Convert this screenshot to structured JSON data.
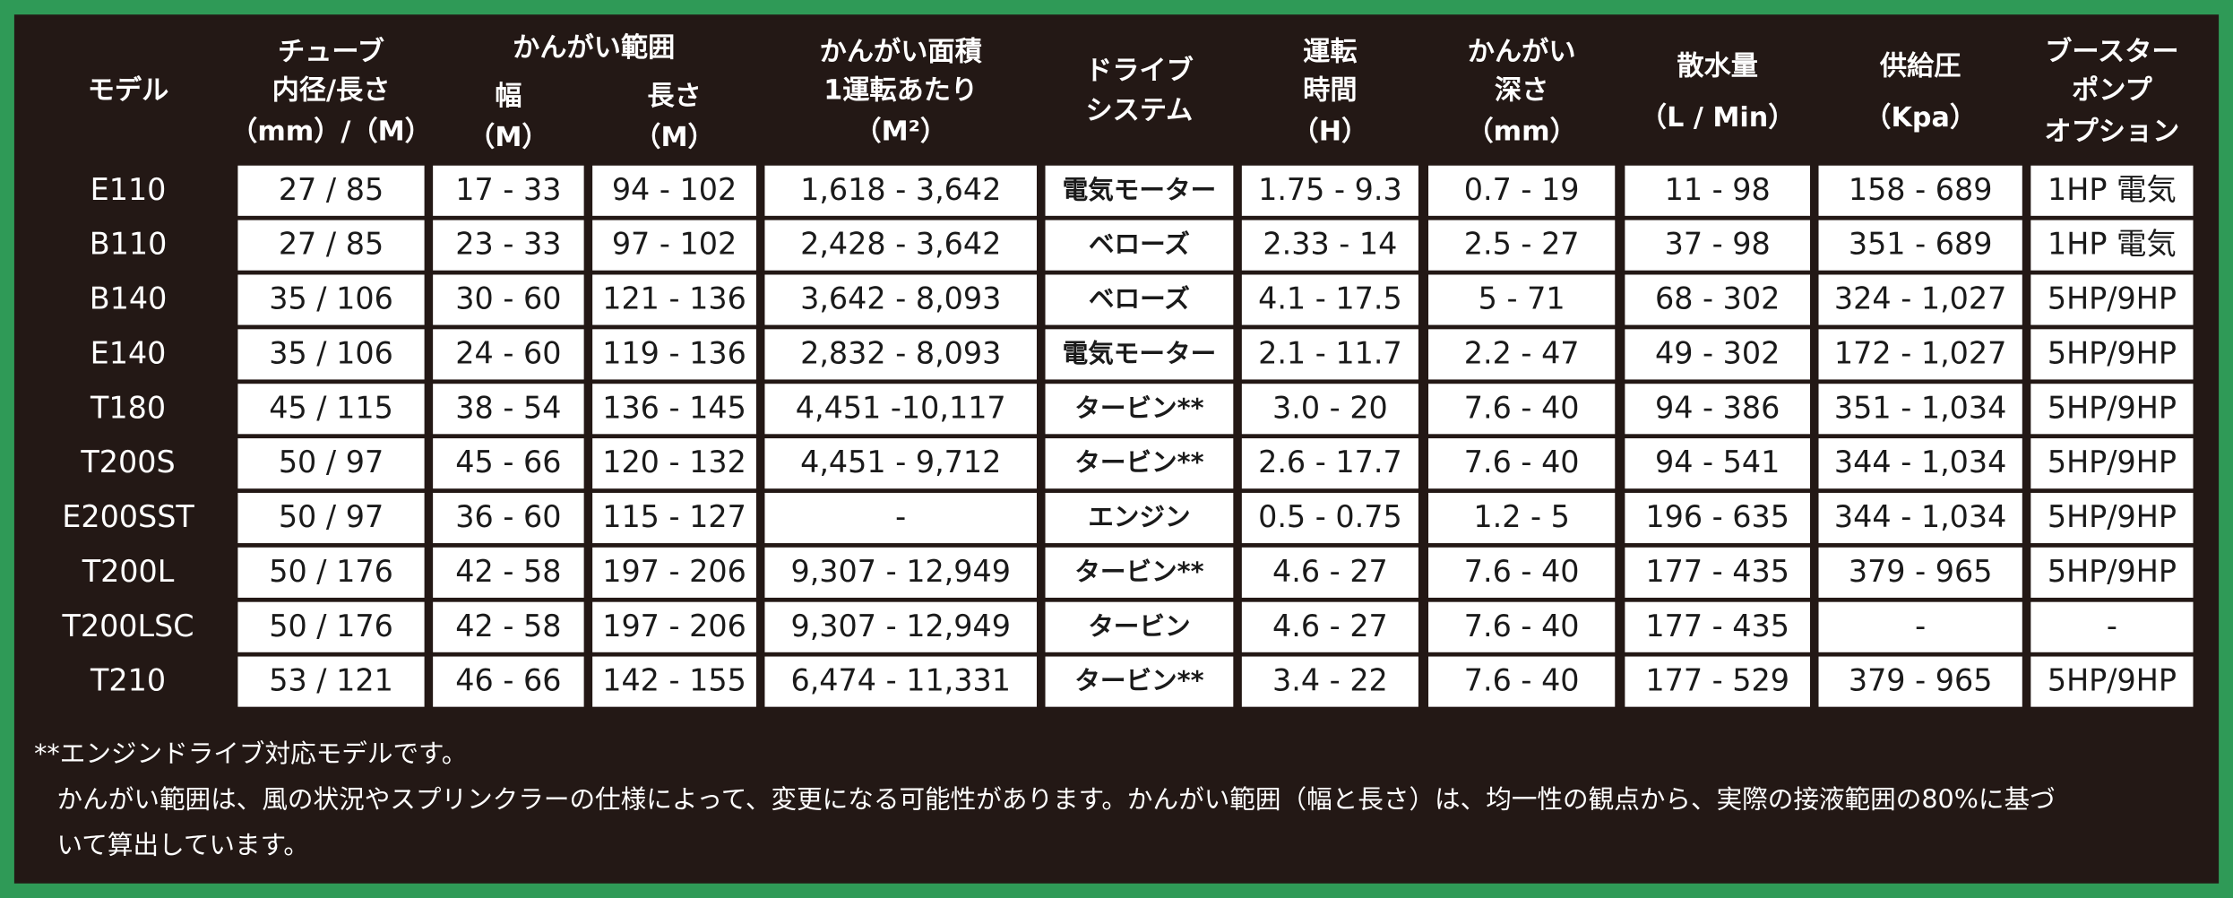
{
  "header": {
    "group": "かんがい範囲",
    "cells": [
      [
        "モデル"
      ],
      [
        "チューブ",
        "内径/長さ",
        "（mm）/（M）"
      ],
      [
        "幅",
        "（M）"
      ],
      [
        "長さ",
        "（M）"
      ],
      [
        "かんがい面積",
        "1運転あたり",
        "（M²）"
      ],
      [
        "ドライブ",
        "システム"
      ],
      [
        "運転",
        "時間",
        "（H）"
      ],
      [
        "かんがい",
        "深さ",
        "（mm）"
      ],
      [
        "散水量",
        "（L / Min）"
      ],
      [
        "供給圧",
        "（Kpa）"
      ],
      [
        "ブースター",
        "ポンプ",
        "オプション"
      ]
    ]
  },
  "table": {
    "rows": [
      [
        "E110",
        "27 / 85",
        "17 - 33",
        "94 - 102",
        "1,618 - 3,642",
        "電気モーター",
        "1.75 - 9.3",
        "0.7 - 19",
        "11 - 98",
        "158 - 689",
        "1HP 電気"
      ],
      [
        "B110",
        "27 / 85",
        "23 - 33",
        "97 - 102",
        "2,428 - 3,642",
        "ベローズ",
        "2.33 - 14",
        "2.5 - 27",
        "37 - 98",
        "351 - 689",
        "1HP 電気"
      ],
      [
        "B140",
        "35 / 106",
        "30 - 60",
        "121 - 136",
        "3,642 - 8,093",
        "ベローズ",
        "4.1 - 17.5",
        "5 - 71",
        "68 - 302",
        "324 - 1,027",
        "5HP/9HP"
      ],
      [
        "E140",
        "35 / 106",
        "24 - 60",
        "119 - 136",
        "2,832 - 8,093",
        "電気モーター",
        "2.1 - 11.7",
        "2.2 - 47",
        "49 - 302",
        "172 - 1,027",
        "5HP/9HP"
      ],
      [
        "T180",
        "45 / 115",
        "38 - 54",
        "136 - 145",
        "4,451 -10,117",
        "タービン**",
        "3.0 - 20",
        "7.6 - 40",
        "94 - 386",
        "351 - 1,034",
        "5HP/9HP"
      ],
      [
        "T200S",
        "50 / 97",
        "45 - 66",
        "120 - 132",
        "4,451 - 9,712",
        "タービン**",
        "2.6 - 17.7",
        "7.6 - 40",
        "94 - 541",
        "344 - 1,034",
        "5HP/9HP"
      ],
      [
        "E200SST",
        "50 / 97",
        "36 - 60",
        "115 - 127",
        "-",
        "エンジン",
        "0.5 - 0.75",
        "1.2 - 5",
        "196 - 635",
        "344 - 1,034",
        "5HP/9HP"
      ],
      [
        "T200L",
        "50 / 176",
        "42 - 58",
        "197 - 206",
        "9,307 - 12,949",
        "タービン**",
        "4.6 - 27",
        "7.6 - 40",
        "177 - 435",
        "379 - 965",
        "5HP/9HP"
      ],
      [
        "T200LSC",
        "50 / 176",
        "42 - 58",
        "197 - 206",
        "9,307 - 12,949",
        "タービン",
        "4.6 - 27",
        "7.6 - 40",
        "177 - 435",
        "-",
        "-"
      ],
      [
        "T210",
        "53 / 121",
        "46 - 66",
        "142 - 155",
        "6,474 - 11,331",
        "タービン**",
        "3.4 - 22",
        "7.6 - 40",
        "177 - 529",
        "379 - 965",
        "5HP/9HP"
      ]
    ]
  },
  "notes": [
    "**エンジンドライブ対応モデルです。",
    "かんがい範囲は、風の状況やスプリンクラーの仕様によって、変更になる可能性があります。かんがい範囲（幅と長さ）は、均一性の観点から、実際の接液範囲の80%に基づ",
    "いて算出しています。"
  ]
}
